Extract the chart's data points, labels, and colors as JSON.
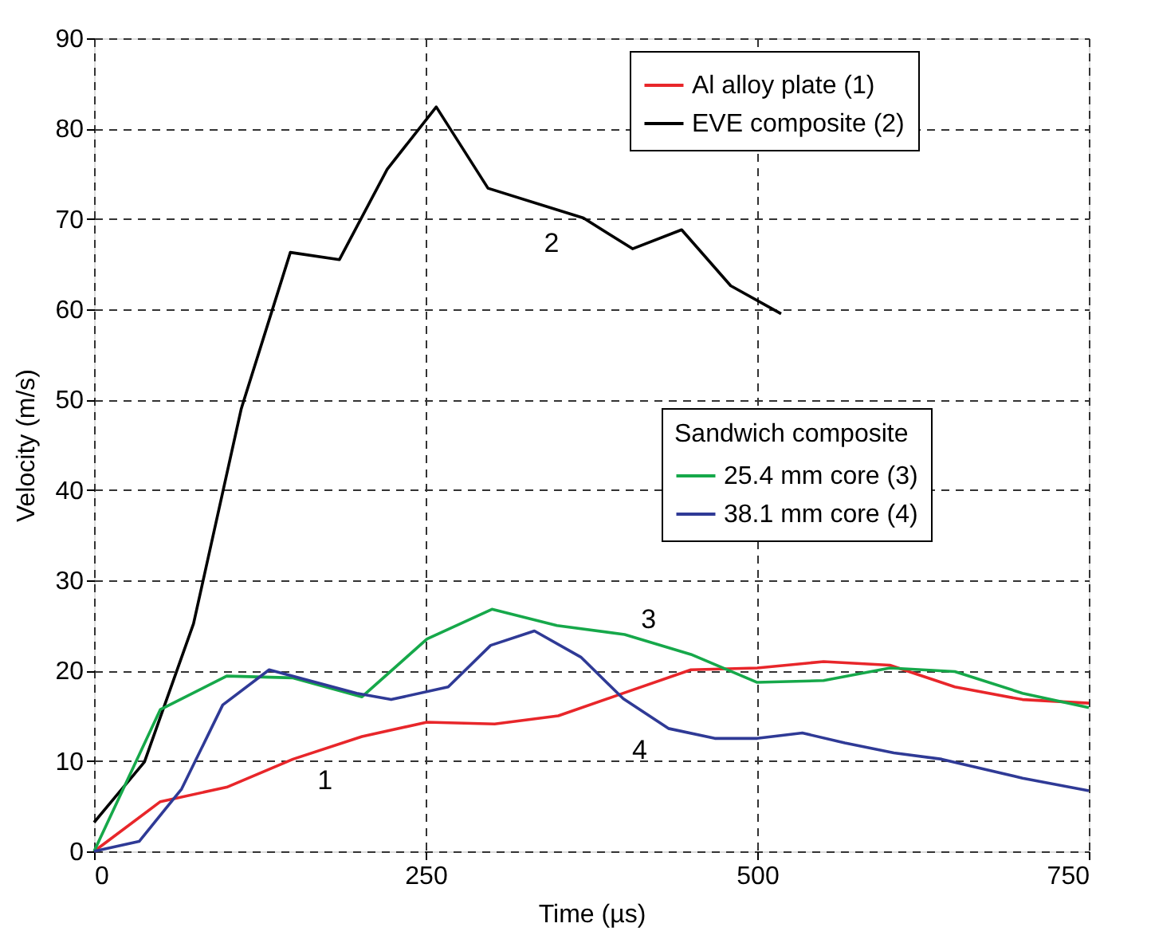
{
  "chart_data": {
    "type": "line",
    "xlabel": "Time (µs)",
    "ylabel": "Velocity (m/s)",
    "legend_title": "Sandwich composite",
    "xlim": [
      0,
      750
    ],
    "ylim": [
      0,
      90
    ],
    "xticks": [
      0,
      250,
      500,
      750
    ],
    "yticks": [
      0,
      10,
      20,
      30,
      40,
      50,
      60,
      70,
      80,
      90
    ],
    "grid": true,
    "legend": "right",
    "line_style": "solid",
    "marker": "none",
    "series": [
      {
        "name": "Al alloy plate (1)",
        "color": "#e8262a",
        "x": [
          0,
          50,
          100,
          150,
          202,
          251,
          302,
          350,
          399,
          450,
          500,
          550,
          600,
          649,
          700,
          750
        ],
        "values": [
          0,
          5.5,
          7.1,
          10.2,
          12.7,
          14.3,
          14.1,
          15.0,
          17.5,
          20.1,
          20.3,
          21.0,
          20.6,
          18.2,
          16.8,
          16.4
        ]
      },
      {
        "name": "EVE composite (2)",
        "color": "#000000",
        "x": [
          0,
          38,
          75,
          111,
          148,
          185,
          221,
          258,
          297,
          369,
          406,
          443,
          480,
          518
        ],
        "values": [
          3.2,
          9.9,
          25.2,
          49,
          66.3,
          65.5,
          75.5,
          82.4,
          73.4,
          70.1,
          66.7,
          68.8,
          62.6,
          59.5
        ]
      },
      {
        "name": "25.4 mm core (3)",
        "color": "#16a84a",
        "x": [
          0,
          50,
          100,
          150,
          202,
          251,
          300,
          349,
          400,
          450,
          500,
          550,
          600,
          649,
          700,
          750
        ],
        "values": [
          0,
          15.7,
          19.4,
          19.2,
          17.1,
          23.5,
          26.8,
          25.0,
          24.0,
          21.8,
          18.7,
          18.9,
          20.3,
          19.9,
          17.5,
          15.9
        ]
      },
      {
        "name": "38.1 mm core (4)",
        "color": "#2f3a96",
        "x": [
          0,
          34,
          66,
          97,
          132,
          198,
          224,
          267,
          299,
          332,
          367,
          399,
          433,
          468,
          500,
          534,
          566,
          603,
          639,
          700,
          750
        ],
        "values": [
          0,
          1.1,
          6.9,
          16.2,
          20.1,
          17.5,
          16.8,
          18.2,
          22.8,
          24.4,
          21.5,
          16.9,
          13.6,
          12.5,
          12.5,
          13.1,
          12.0,
          10.9,
          10.2,
          8.1,
          6.7
        ]
      }
    ],
    "annotations": [
      "1",
      "2",
      "3",
      "4"
    ]
  }
}
